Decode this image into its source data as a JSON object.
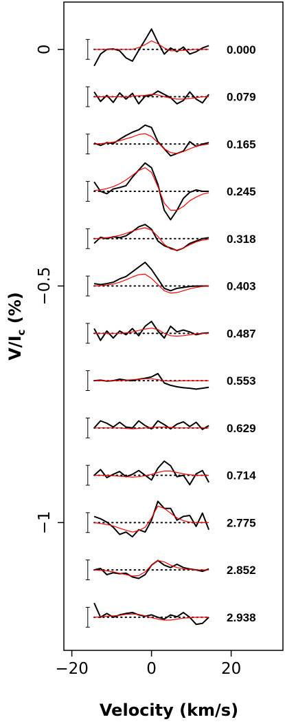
{
  "chart_data": {
    "type": "line",
    "xlabel": "Velocity (km/s)",
    "ylabel_main": "V/I",
    "ylabel_sub": "c",
    "ylabel_unit": " (%)",
    "xlim": [
      -22,
      33
    ],
    "ylim": [
      -1.27,
      0.1
    ],
    "x_ticks": [
      {
        "value": -20,
        "label": "−20"
      },
      {
        "value": 0,
        "label": "0"
      },
      {
        "value": 20,
        "label": "20"
      }
    ],
    "y_ticks": [
      {
        "value": 0,
        "label": "0"
      },
      {
        "value": -0.5,
        "label": "−0.5"
      },
      {
        "value": -1,
        "label": "−1"
      }
    ],
    "observed_color": "#000000",
    "model_color": "#ff0000",
    "zero_line_style": "dotted",
    "error_bar_halfwidth": 0.021,
    "velocity_grid": [
      -14.4,
      -12.8,
      -11.2,
      -9.6,
      -8.0,
      -6.4,
      -4.8,
      -3.2,
      -1.6,
      0.0,
      1.6,
      3.2,
      4.8,
      6.4,
      8.0,
      9.6,
      11.2,
      12.8,
      14.4
    ],
    "series": [
      {
        "phase": "0.000",
        "offset": 0.0,
        "observed": [
          -0.035,
          -0.01,
          0.0,
          0.001,
          -0.003,
          -0.018,
          -0.025,
          -0.002,
          0.02,
          0.043,
          0.015,
          -0.01,
          0.003,
          -0.005,
          0.005,
          -0.01,
          -0.005,
          0.003,
          0.008
        ],
        "model": [
          0.0,
          0.0,
          0.0,
          0.0,
          0.0,
          0.0,
          0.0,
          0.004,
          0.01,
          0.018,
          0.012,
          0.003,
          -0.003,
          -0.003,
          -0.002,
          -0.001,
          0.0,
          0.0,
          0.0
        ]
      },
      {
        "phase": "0.079",
        "offset": -0.1,
        "observed": [
          0.01,
          -0.01,
          0.003,
          -0.012,
          0.008,
          -0.005,
          0.007,
          -0.015,
          0.001,
          0.003,
          0.012,
          0.005,
          -0.002,
          -0.015,
          -0.008,
          0.01,
          -0.005,
          -0.013,
          0.005
        ],
        "model": [
          0.0,
          0.0,
          0.0,
          0.0,
          0.0,
          0.0,
          0.001,
          0.002,
          0.003,
          0.005,
          0.004,
          0.0,
          -0.003,
          -0.005,
          -0.005,
          -0.004,
          -0.002,
          0.0,
          0.0
        ]
      },
      {
        "phase": "0.165",
        "offset": -0.2,
        "observed": [
          0.002,
          -0.003,
          0.003,
          0.001,
          0.01,
          0.018,
          0.025,
          0.03,
          0.04,
          0.035,
          0.005,
          -0.01,
          -0.025,
          -0.02,
          -0.015,
          0.005,
          -0.005,
          0.0,
          0.003
        ],
        "model": [
          0.0,
          0.001,
          0.002,
          0.004,
          0.007,
          0.011,
          0.015,
          0.02,
          0.022,
          0.016,
          0.003,
          -0.01,
          -0.018,
          -0.02,
          -0.016,
          -0.01,
          -0.005,
          -0.002,
          0.0
        ]
      },
      {
        "phase": "0.245",
        "offset": -0.3,
        "observed": [
          0.02,
          0.0,
          -0.005,
          0.005,
          0.008,
          0.012,
          0.03,
          0.045,
          0.06,
          0.05,
          0.015,
          -0.04,
          -0.06,
          -0.04,
          -0.015,
          -0.002,
          0.003,
          0.0,
          0.0
        ],
        "model": [
          0.002,
          0.003,
          0.006,
          0.01,
          0.016,
          0.024,
          0.034,
          0.044,
          0.05,
          0.04,
          0.01,
          -0.025,
          -0.04,
          -0.04,
          -0.032,
          -0.02,
          -0.012,
          -0.006,
          -0.003
        ]
      },
      {
        "phase": "0.318",
        "offset": -0.4,
        "observed": [
          -0.01,
          0.003,
          0.0,
          0.004,
          0.002,
          0.006,
          0.015,
          0.025,
          0.03,
          0.02,
          -0.005,
          -0.015,
          -0.02,
          -0.025,
          -0.02,
          -0.01,
          -0.005,
          0.0,
          0.002
        ],
        "model": [
          0.0,
          0.001,
          0.002,
          0.004,
          0.007,
          0.011,
          0.016,
          0.02,
          0.023,
          0.018,
          0.005,
          -0.012,
          -0.022,
          -0.024,
          -0.02,
          -0.013,
          -0.007,
          -0.003,
          -0.001
        ]
      },
      {
        "phase": "0.403",
        "offset": -0.5,
        "observed": [
          0.005,
          0.003,
          0.005,
          0.008,
          0.015,
          0.02,
          0.03,
          0.04,
          0.05,
          0.035,
          0.015,
          -0.005,
          -0.01,
          -0.005,
          -0.003,
          -0.001,
          0.0,
          0.0,
          0.0
        ],
        "model": [
          0.0,
          0.001,
          0.002,
          0.004,
          0.008,
          0.013,
          0.019,
          0.024,
          0.025,
          0.016,
          0.003,
          -0.01,
          -0.015,
          -0.014,
          -0.01,
          -0.006,
          -0.003,
          -0.001,
          0.0
        ]
      },
      {
        "phase": "0.487",
        "offset": -0.6,
        "observed": [
          0.01,
          -0.015,
          0.005,
          -0.01,
          0.005,
          -0.003,
          0.01,
          -0.005,
          0.015,
          0.025,
          0.005,
          -0.01,
          0.015,
          0.003,
          0.007,
          0.003,
          -0.003,
          0.0,
          0.001
        ],
        "model": [
          0.0,
          0.0,
          0.0,
          0.0,
          0.0,
          0.001,
          0.003,
          0.006,
          0.009,
          0.011,
          0.008,
          0.0,
          -0.005,
          -0.006,
          -0.005,
          -0.003,
          -0.001,
          0.0,
          0.0
        ]
      },
      {
        "phase": "0.553",
        "offset": -0.7,
        "observed": [
          0.0,
          0.001,
          -0.001,
          0.0,
          0.003,
          0.001,
          0.0,
          0.003,
          0.005,
          0.008,
          0.015,
          -0.005,
          -0.01,
          -0.013,
          -0.015,
          -0.016,
          -0.018,
          -0.016,
          -0.014
        ],
        "model": [
          0.0,
          0.0,
          0.0,
          0.0,
          0.0,
          0.001,
          0.002,
          0.003,
          0.004,
          0.004,
          0.002,
          0.0,
          -0.001,
          -0.001,
          0.0,
          0.0,
          0.0,
          0.0,
          0.0
        ]
      },
      {
        "phase": "0.629",
        "offset": -0.8,
        "observed": [
          0.0,
          0.015,
          0.01,
          0.002,
          0.012,
          0.002,
          0.0,
          0.015,
          0.005,
          -0.002,
          0.015,
          0.007,
          -0.002,
          0.008,
          0.013,
          0.003,
          0.012,
          -0.003,
          0.005
        ],
        "model": [
          0.0,
          0.0,
          0.0,
          0.0,
          0.0,
          -0.001,
          -0.002,
          -0.001,
          0.0,
          0.001,
          0.002,
          0.002,
          0.001,
          0.0,
          0.0,
          0.0,
          0.0,
          0.0,
          0.0
        ]
      },
      {
        "phase": "0.714",
        "offset": -0.9,
        "observed": [
          0.0,
          0.012,
          -0.005,
          0.002,
          0.008,
          -0.003,
          0.002,
          0.01,
          0.0,
          -0.01,
          0.015,
          0.03,
          0.02,
          -0.003,
          0.0,
          -0.02,
          0.003,
          0.01,
          -0.015
        ],
        "model": [
          0.0,
          0.0,
          0.0,
          -0.001,
          -0.002,
          -0.003,
          -0.004,
          -0.003,
          -0.001,
          0.002,
          0.006,
          0.009,
          0.009,
          0.006,
          0.003,
          0.001,
          0.0,
          0.0,
          0.0
        ]
      },
      {
        "phase": "2.775",
        "offset": -1.0,
        "observed": [
          0.013,
          0.008,
          0.001,
          -0.01,
          -0.025,
          -0.02,
          -0.03,
          -0.015,
          -0.02,
          0.005,
          0.045,
          0.03,
          0.03,
          0.005,
          0.013,
          0.015,
          -0.008,
          0.02,
          -0.015
        ],
        "model": [
          0.0,
          -0.002,
          -0.004,
          -0.007,
          -0.012,
          -0.016,
          -0.02,
          -0.017,
          -0.01,
          0.01,
          0.035,
          0.03,
          0.02,
          0.01,
          0.004,
          0.001,
          0.0,
          0.0,
          0.0
        ]
      },
      {
        "phase": "2.852",
        "offset": -1.1,
        "observed": [
          0.0,
          0.003,
          -0.01,
          -0.006,
          -0.008,
          -0.007,
          -0.015,
          -0.018,
          -0.01,
          0.01,
          0.02,
          0.01,
          0.005,
          0.012,
          0.005,
          0.002,
          0.0,
          -0.003,
          0.002
        ],
        "model": [
          0.0,
          -0.001,
          -0.002,
          -0.004,
          -0.007,
          -0.01,
          -0.013,
          -0.012,
          -0.004,
          0.01,
          0.02,
          0.017,
          0.01,
          0.005,
          0.002,
          0.001,
          0.0,
          0.0,
          0.0
        ]
      },
      {
        "phase": "2.938",
        "offset": -1.2,
        "observed": [
          0.03,
          0.0,
          0.008,
          0.0,
          0.005,
          0.008,
          0.01,
          0.005,
          0.002,
          0.005,
          0.0,
          -0.004,
          0.005,
          0.001,
          0.01,
          0.0,
          -0.015,
          -0.013,
          0.0
        ],
        "model": [
          0.0,
          0.001,
          0.002,
          0.003,
          0.004,
          0.006,
          0.007,
          0.006,
          0.003,
          -0.001,
          -0.004,
          -0.006,
          -0.006,
          -0.004,
          -0.002,
          -0.001,
          0.0,
          0.0,
          0.0
        ]
      }
    ]
  }
}
